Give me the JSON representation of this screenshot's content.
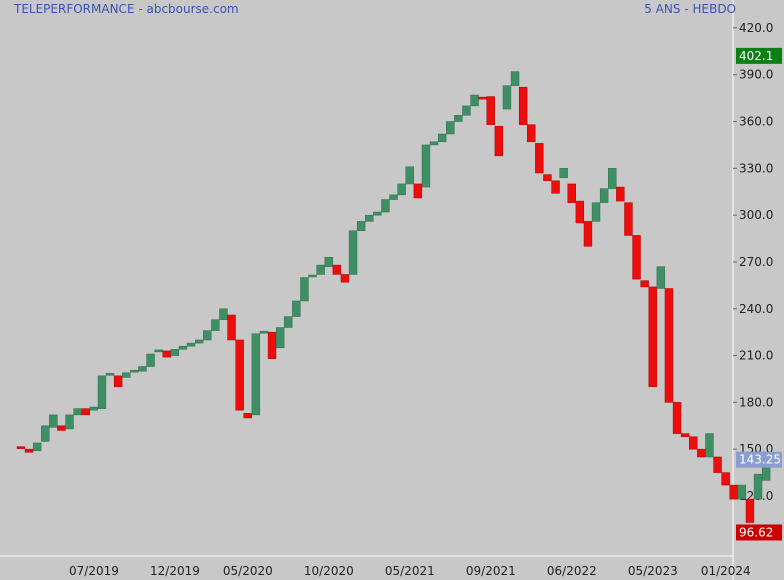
{
  "header": {
    "title": "TELEPERFORMANCE - abcbourse.com",
    "period": "5 ANS - HEBDO"
  },
  "colors": {
    "up": "#3f8f64",
    "down": "#ee0d0d",
    "background": "#c8c8c8",
    "high_badge": "#0a7f14",
    "low_badge": "#cc0000",
    "last_badge": "#8a9dcc"
  },
  "chart_data": {
    "type": "candlestick",
    "ylim": [
      93,
      422
    ],
    "yticks": [
      "420.0",
      "390.0",
      "360.0",
      "330.0",
      "300.0",
      "270.0",
      "240.0",
      "210.0",
      "180.0",
      "150.0",
      "120.0"
    ],
    "xticks": [
      {
        "label": "07/2019",
        "index": 9
      },
      {
        "label": "12/2019",
        "index": 19
      },
      {
        "label": "05/2020",
        "index": 28
      },
      {
        "label": "10/2020",
        "index": 38
      },
      {
        "label": "05/2021",
        "index": 48
      },
      {
        "label": "09/2021",
        "index": 58
      },
      {
        "label": "06/2022",
        "index": 68
      },
      {
        "label": "05/2023",
        "index": 78
      },
      {
        "label": "01/2024",
        "index": 87
      }
    ],
    "badges": {
      "high": "402.1",
      "last": "143.25",
      "low": "96.62"
    },
    "candles": [
      [
        151,
        150
      ],
      [
        150,
        148
      ],
      [
        149,
        154
      ],
      [
        155,
        165
      ],
      [
        164,
        172
      ],
      [
        165,
        162
      ],
      [
        163,
        172
      ],
      [
        172,
        176
      ],
      [
        176,
        172
      ],
      [
        175,
        177
      ],
      [
        176,
        197
      ],
      [
        197,
        198
      ],
      [
        197,
        190
      ],
      [
        196,
        199
      ],
      [
        199,
        200
      ],
      [
        200,
        203
      ],
      [
        203,
        211
      ],
      [
        212,
        213
      ],
      [
        213,
        209
      ],
      [
        210,
        214
      ],
      [
        214,
        216
      ],
      [
        216,
        218
      ],
      [
        218,
        220
      ],
      [
        220,
        226
      ],
      [
        226,
        233
      ],
      [
        233,
        240
      ],
      [
        236,
        220
      ],
      [
        220,
        175
      ],
      [
        173,
        170
      ],
      [
        172,
        224
      ],
      [
        224,
        225
      ],
      [
        225,
        208
      ],
      [
        215,
        228
      ],
      [
        228,
        235
      ],
      [
        235,
        245
      ],
      [
        245,
        260
      ],
      [
        260,
        261
      ],
      [
        262,
        268
      ],
      [
        267,
        273
      ],
      [
        268,
        262
      ],
      [
        262,
        257
      ],
      [
        262,
        290
      ],
      [
        290,
        296
      ],
      [
        296,
        300
      ],
      [
        300,
        302
      ],
      [
        302,
        310
      ],
      [
        310,
        313
      ],
      [
        313,
        320
      ],
      [
        320,
        331
      ],
      [
        320,
        311
      ],
      [
        318,
        345
      ],
      [
        345,
        347
      ],
      [
        347,
        352
      ],
      [
        352,
        360
      ],
      [
        360,
        364
      ],
      [
        364,
        370
      ],
      [
        370,
        377
      ],
      [
        375,
        374
      ],
      [
        376,
        358
      ],
      [
        357,
        338
      ],
      [
        368,
        383
      ],
      [
        383,
        392
      ],
      [
        382,
        358
      ],
      [
        358,
        347
      ],
      [
        346,
        327
      ],
      [
        326,
        322
      ],
      [
        322,
        314
      ],
      [
        324,
        330
      ],
      [
        320,
        308
      ],
      [
        309,
        295
      ],
      [
        296,
        280
      ],
      [
        296,
        308
      ],
      [
        308,
        317
      ],
      [
        317,
        330
      ],
      [
        318,
        309
      ],
      [
        308,
        287
      ],
      [
        287,
        259
      ],
      [
        258,
        254
      ],
      [
        254,
        190
      ],
      [
        253,
        267
      ],
      [
        253,
        180
      ],
      [
        180,
        160
      ],
      [
        160,
        158
      ],
      [
        158,
        150
      ],
      [
        150,
        145
      ],
      [
        145,
        160
      ],
      [
        145,
        135
      ],
      [
        135,
        127
      ],
      [
        127,
        118
      ],
      [
        118,
        127
      ],
      [
        118,
        103
      ],
      [
        118,
        134
      ],
      [
        130,
        140
      ],
      [
        140,
        143
      ]
    ]
  }
}
